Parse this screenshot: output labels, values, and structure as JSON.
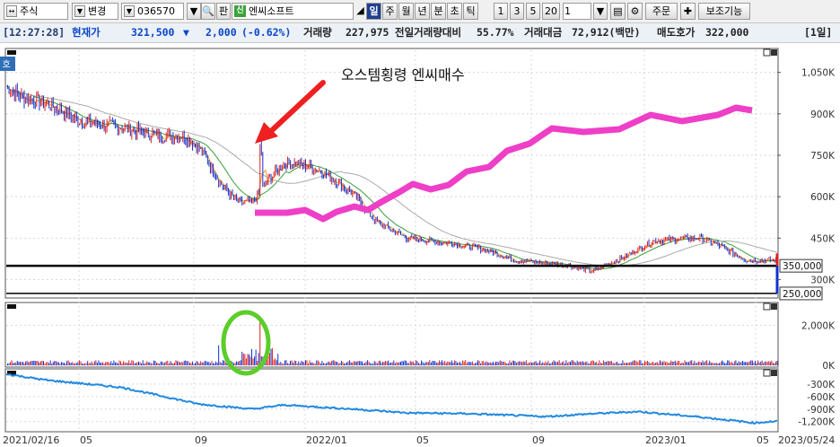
{
  "toolbar": {
    "market": "주식",
    "mode": "변경",
    "code": "036570",
    "label_pan": "판",
    "badge": "신",
    "stock_name": "엔씨소프트",
    "periods": [
      "일",
      "주",
      "월",
      "년",
      "분",
      "초",
      "틱"
    ],
    "selected_period": "일",
    "intervals": [
      "1",
      "3",
      "5",
      "20"
    ],
    "count": "1",
    "order_label": "주문",
    "aux_label": "보조기능"
  },
  "quote": {
    "time": "[12:27:28]",
    "price_label": "현재가",
    "price": "321,500",
    "change_arrow": "▼",
    "change": "2,000",
    "change_pct": "(-0.62%)",
    "volume_label": "거래량",
    "volume": "227,975",
    "prev_ratio_label": "전일거래량대비",
    "prev_ratio": "55.77%",
    "amount_label": "거래대금",
    "amount": "72,912(백만)",
    "ask_label": "매도호가",
    "ask": "322,000",
    "period_tag": "[1일]"
  },
  "colors": {
    "pink_line": "#ee3fc7",
    "arrow": "#ee2020",
    "highlight_ring": "#5ccd2a",
    "obv_line": "#2289e0",
    "ma5": "#f0a028",
    "ma20": "#3a9e3a",
    "ma60": "#aaaaaa",
    "candle_up": "#e02020",
    "candle_down": "#1030d0"
  },
  "chart_data": {
    "type": "line",
    "title": "",
    "annotation": "오스템횡령 엔씨매수",
    "y_axis_labels": [
      "1,050K",
      "900K",
      "750K",
      "600K",
      "450K",
      "300K"
    ],
    "ylim": [
      240000,
      1130000
    ],
    "x_axis_labels": [
      "2021/02/16",
      "05",
      "09",
      "2022/01",
      "05",
      "09",
      "2023/01",
      "05",
      "2023/05/24"
    ],
    "horizontal_lines": [
      {
        "label": "350,000",
        "value": 350000
      },
      {
        "label": "250,000",
        "value": 250000
      }
    ],
    "price": {
      "x": [
        0,
        0.02,
        0.05,
        0.1,
        0.15,
        0.2,
        0.23,
        0.25,
        0.28,
        0.3,
        0.32,
        0.34,
        0.36,
        0.38,
        0.41,
        0.45,
        0.48,
        0.52,
        0.58,
        0.62,
        0.66,
        0.7,
        0.73,
        0.76,
        0.8,
        0.84,
        0.88,
        0.9,
        0.92,
        0.96,
        1.0
      ],
      "close": [
        1000000,
        960000,
        940000,
        870000,
        850000,
        820000,
        820000,
        780000,
        640000,
        580000,
        580000,
        660000,
        720000,
        720000,
        690000,
        610000,
        510000,
        450000,
        430000,
        410000,
        370000,
        360000,
        350000,
        330000,
        380000,
        440000,
        450000,
        450000,
        430000,
        370000,
        370000
      ]
    },
    "volume_axis_labels": [
      "2,000K",
      "0K"
    ],
    "volume_ylim": [
      0,
      3000000
    ],
    "obv_axis_labels": [
      "-300K",
      "-600K",
      "-900K",
      "-1,200K"
    ],
    "obv_ylim": [
      -1400000,
      0
    ]
  }
}
